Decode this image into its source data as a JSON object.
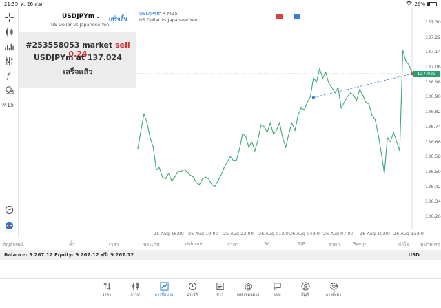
{
  "status": {
    "time": "21:35",
    "date": "ศ. 26 ส.ค.",
    "battery": "26%",
    "battery_level": 0.26
  },
  "toolbar": {
    "timeframe": "M15"
  },
  "trade_panel": {
    "symbol": "USDJPYm",
    "description": "US Dollar vs Japanese Yen",
    "done_label": "เสร็จสิ้น",
    "result_prefix": "#253558053 market",
    "result_action": "sell 0.24",
    "result_line2": "USDJPYm at 137.024",
    "result_line3": "เสร็จแล้ว"
  },
  "chart": {
    "title_symbol": "USDJPYm",
    "title_tf": "• M15",
    "subtitle": "US Dollar vs Japanese Yen",
    "current_price": "137.023",
    "badge_colors": [
      "#d94040",
      "#3a7bd5"
    ]
  },
  "chart_data": {
    "type": "line",
    "symbol": "USDJPYm",
    "timeframe": "M15",
    "y_ticks": [
      "137.300",
      "137.220",
      "137.140",
      "137.060",
      "136.980",
      "136.900",
      "136.820",
      "136.740",
      "136.660",
      "136.580",
      "136.500",
      "136.420",
      "136.340",
      "136.260"
    ],
    "x_ticks": [
      "25 Aug 16:00",
      "25 Aug 19:00",
      "25 Aug 22:00",
      "26 Aug 01:00",
      "26 Aug 04:00",
      "26 Aug 07:00",
      "26 Aug 10:00",
      "26 Aug 13:00"
    ],
    "ylim": [
      136.2,
      137.33
    ],
    "values": [
      136.62,
      136.72,
      136.81,
      136.76,
      136.68,
      136.63,
      136.51,
      136.52,
      136.47,
      136.46,
      136.49,
      136.45,
      136.47,
      136.5,
      136.5,
      136.51,
      136.5,
      136.48,
      136.47,
      136.44,
      136.43,
      136.46,
      136.47,
      136.46,
      136.43,
      136.42,
      136.45,
      136.48,
      136.52,
      136.55,
      136.58,
      136.56,
      136.56,
      136.62,
      136.7,
      136.69,
      136.63,
      136.66,
      136.61,
      136.67,
      136.75,
      136.74,
      136.71,
      136.76,
      136.7,
      136.72,
      136.76,
      136.68,
      136.63,
      136.7,
      136.76,
      136.72,
      136.8,
      136.84,
      136.83,
      136.87,
      136.9,
      137.0,
      136.98,
      137.05,
      137.0,
      137.03,
      136.97,
      136.95,
      136.92,
      136.95,
      136.84,
      136.87,
      136.9,
      136.92,
      136.91,
      136.88,
      136.94,
      136.91,
      136.87,
      136.86,
      136.8,
      136.78,
      136.7,
      136.6,
      136.49,
      136.68,
      136.66,
      136.71,
      136.66,
      136.61,
      137.15,
      137.09,
      137.07,
      137.03
    ],
    "current": 137.023,
    "sell_marker": 136.896,
    "grid": false
  },
  "table": {
    "headers": [
      "สัญลักษณ์",
      "ตั๋ว",
      "เวลา",
      "ประเภท",
      "Volume",
      "ราคา",
      "S/L",
      "T/P",
      "ราคา",
      "Swap",
      "กำไร",
      "หมายเหตุ"
    ]
  },
  "balance": {
    "text": "Balance: 9 267.12 Equity: 9 267.12 ฟรี: 9 267.12",
    "currency": "USD"
  },
  "nav": [
    {
      "label": "ราคา",
      "icon": "arrows-updown-icon"
    },
    {
      "label": "กราฟ",
      "icon": "candlestick-icon"
    },
    {
      "label": "การซื้อขาย",
      "icon": "trade-chart-icon",
      "active": true
    },
    {
      "label": "ประวัติ",
      "icon": "history-icon"
    },
    {
      "label": "ข่าว",
      "icon": "news-icon"
    },
    {
      "label": "กล่องจดหมาย",
      "icon": "mailbox-icon"
    },
    {
      "label": "แชท",
      "icon": "chat-icon"
    },
    {
      "label": "บัญชี",
      "icon": "account-icon"
    },
    {
      "label": "การตั้งค่า",
      "icon": "settings-icon"
    }
  ]
}
